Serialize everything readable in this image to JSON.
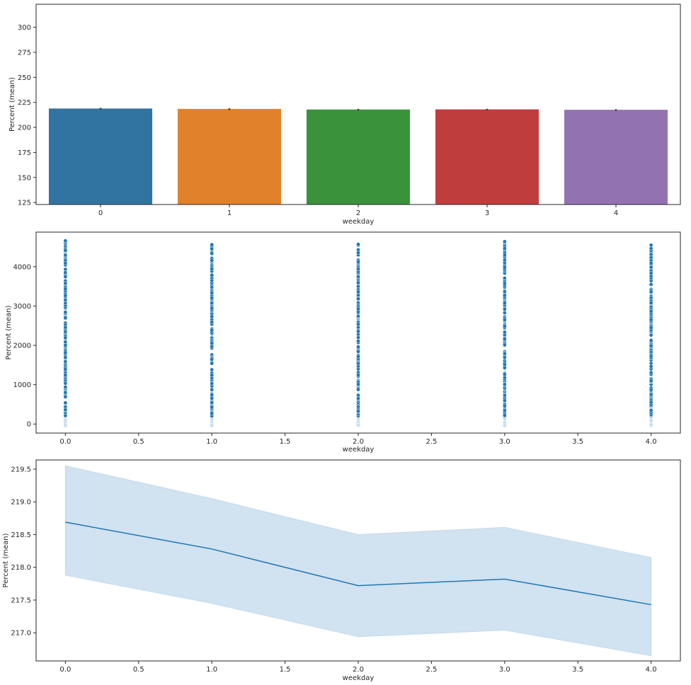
{
  "chart_data": [
    {
      "type": "bar",
      "xlabel": "weekday",
      "ylabel": "Percent (mean)",
      "categories": [
        "0",
        "1",
        "2",
        "3",
        "4"
      ],
      "values": [
        218.7,
        218.3,
        217.7,
        217.8,
        217.4
      ],
      "error_low": [
        217.9,
        217.5,
        216.9,
        217.0,
        216.6
      ],
      "error_high": [
        219.5,
        219.1,
        218.5,
        218.6,
        218.2
      ],
      "colors": [
        "#3274a1",
        "#e1812c",
        "#3a923a",
        "#c03d3e",
        "#9372b2"
      ],
      "ylim": [
        123,
        323
      ],
      "yticks": [
        125,
        150,
        175,
        200,
        225,
        250,
        275,
        300
      ],
      "yticklabels": [
        "125",
        "150",
        "175",
        "200",
        "225",
        "250",
        "275",
        "300"
      ]
    },
    {
      "type": "scatter",
      "xlabel": "weekday",
      "ylabel": "Percent (mean)",
      "x_values": [
        0,
        1,
        2,
        3,
        4
      ],
      "y_max_per_x": [
        4660,
        4560,
        4570,
        4640,
        4550
      ],
      "y_min": -50,
      "point_color": "#1f77b4",
      "xlim": [
        -0.2,
        4.2
      ],
      "ylim": [
        -230,
        4880
      ],
      "xticks": [
        0.0,
        0.5,
        1.0,
        1.5,
        2.0,
        2.5,
        3.0,
        3.5,
        4.0
      ],
      "xticklabels": [
        "0.0",
        "0.5",
        "1.0",
        "1.5",
        "2.0",
        "2.5",
        "3.0",
        "3.5",
        "4.0"
      ],
      "yticks": [
        0,
        1000,
        2000,
        3000,
        4000
      ],
      "yticklabels": [
        "0",
        "1000",
        "2000",
        "3000",
        "4000"
      ]
    },
    {
      "type": "line",
      "xlabel": "weekday",
      "ylabel": "Percent (mean)",
      "x": [
        0,
        1,
        2,
        3,
        4
      ],
      "y": [
        218.69,
        218.28,
        217.72,
        217.82,
        217.43
      ],
      "ci_low": [
        217.88,
        217.45,
        216.94,
        217.04,
        216.65
      ],
      "ci_high": [
        219.55,
        219.05,
        218.5,
        218.61,
        218.15
      ],
      "line_color": "#1f77b4",
      "band_color": "#c6dbec",
      "xlim": [
        -0.2,
        4.2
      ],
      "ylim": [
        216.57,
        219.64
      ],
      "xticks": [
        0.0,
        0.5,
        1.0,
        1.5,
        2.0,
        2.5,
        3.0,
        3.5,
        4.0
      ],
      "xticklabels": [
        "0.0",
        "0.5",
        "1.0",
        "1.5",
        "2.0",
        "2.5",
        "3.0",
        "3.5",
        "4.0"
      ],
      "yticks": [
        217.0,
        217.5,
        218.0,
        218.5,
        219.0,
        219.5
      ],
      "yticklabels": [
        "217.0",
        "217.5",
        "218.0",
        "218.5",
        "219.0",
        "219.5"
      ]
    }
  ]
}
